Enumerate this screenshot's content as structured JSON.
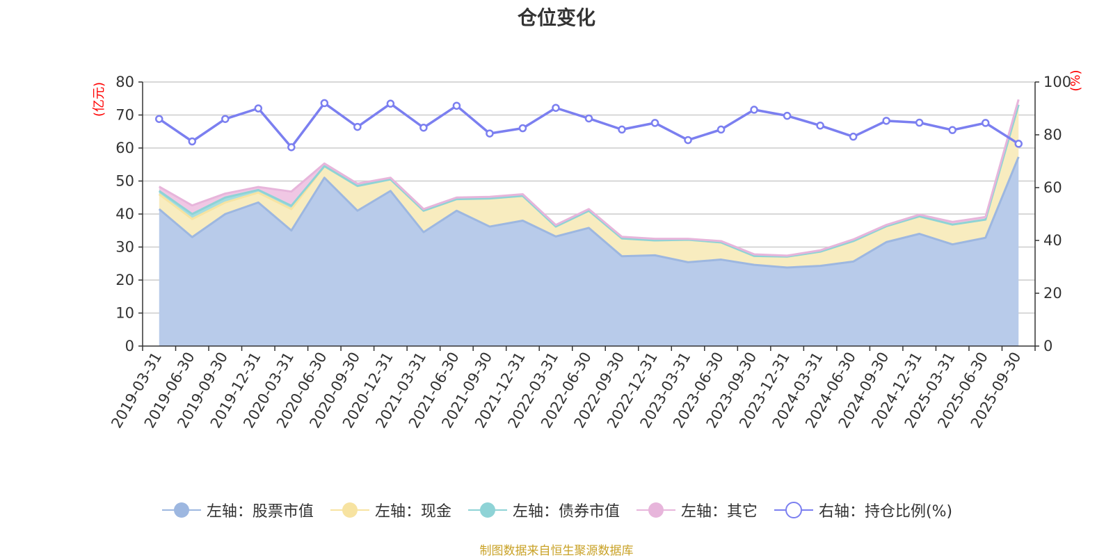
{
  "chart_data": {
    "type": "area",
    "title": "仓位变化",
    "left_axis_unit": "(亿元)",
    "right_axis_unit": "(%)",
    "ylim_left": [
      0,
      80
    ],
    "ylim_right": [
      0,
      100
    ],
    "yticks_left": [
      0,
      10,
      20,
      30,
      40,
      50,
      60,
      70,
      80
    ],
    "yticks_right": [
      0,
      20,
      40,
      60,
      80,
      100
    ],
    "categories": [
      "2019-03-31",
      "2019-06-30",
      "2019-09-30",
      "2019-12-31",
      "2020-03-31",
      "2020-06-30",
      "2020-09-30",
      "2020-12-31",
      "2021-03-31",
      "2021-06-30",
      "2021-09-30",
      "2021-12-31",
      "2022-03-31",
      "2022-06-30",
      "2022-09-30",
      "2022-12-31",
      "2023-03-31",
      "2023-06-30",
      "2023-09-30",
      "2023-12-31",
      "2024-03-31",
      "2024-06-30",
      "2024-09-30",
      "2024-12-31",
      "2025-03-31",
      "2025-06-30",
      "2025-09-30"
    ],
    "series": [
      {
        "name": "左轴：股票市值",
        "axis": "left",
        "color": "#9db7e0",
        "fill": "#b8cbea",
        "values": [
          41.5,
          33,
          40,
          43.5,
          35,
          51,
          41,
          47,
          34.5,
          41,
          36.2,
          38,
          33.2,
          35.8,
          27.2,
          27.5,
          25.4,
          26.2,
          24.6,
          23.8,
          24.3,
          25.6,
          31.5,
          34,
          30.8,
          32.8,
          57.3
        ]
      },
      {
        "name": "左轴：现金",
        "axis": "left",
        "color": "#f7e3a1",
        "fill": "#f8ecbf",
        "values": [
          4.5,
          5.5,
          3.5,
          3,
          6.5,
          3.5,
          7.5,
          3.5,
          6.5,
          3.5,
          8.5,
          7.5,
          3,
          5.2,
          5.4,
          4.5,
          6.8,
          5.2,
          2.7,
          3.3,
          4.3,
          6.2,
          4.8,
          5.3,
          6,
          5.5,
          15.8
        ]
      },
      {
        "name": "左轴：债券市值",
        "axis": "left",
        "color": "#8ed3d6",
        "fill": "#a6dde0",
        "values": [
          1,
          1.5,
          1.5,
          0.8,
          1,
          0,
          0,
          0,
          0,
          0,
          0,
          0,
          0,
          0,
          0,
          0,
          0,
          0,
          0,
          0,
          0,
          0,
          0,
          0,
          0,
          0,
          0
        ]
      },
      {
        "name": "左轴：其它",
        "axis": "left",
        "color": "#e7b5db",
        "fill": "#f0c7e4",
        "values": [
          1.3,
          2.6,
          1.2,
          0.9,
          4.3,
          0.8,
          0.7,
          0.5,
          0.5,
          0.5,
          0.5,
          0.5,
          0.5,
          0.5,
          0.5,
          0.5,
          0.3,
          0.4,
          0.5,
          0.3,
          0.4,
          0.5,
          0.4,
          0.5,
          0.8,
          0.8,
          1.6
        ]
      },
      {
        "name": "右轴：持仓比例(%)",
        "axis": "right",
        "color": "#7b7ff0",
        "values": [
          86,
          77.5,
          86,
          90,
          75.3,
          92,
          83,
          91.8,
          82.7,
          91,
          80.5,
          82.5,
          90.2,
          86.2,
          82,
          84.5,
          78,
          82,
          89.5,
          87.2,
          83.5,
          79.3,
          85.3,
          84.6,
          81.8,
          84.5,
          76.6
        ]
      }
    ]
  },
  "source_note": "制图数据来自恒生聚源数据库"
}
